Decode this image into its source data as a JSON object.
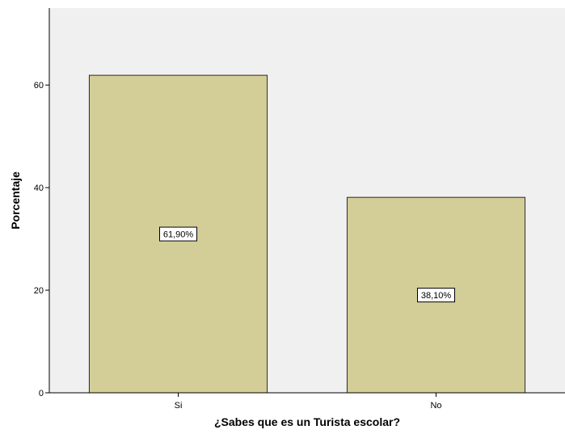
{
  "chart_data": {
    "type": "bar",
    "categories": [
      "Si",
      "No"
    ],
    "values": [
      61.9,
      38.1
    ],
    "data_labels": [
      "61,90%",
      "38,10%"
    ],
    "xlabel": "¿Sabes que es un Turista escolar?",
    "ylabel": "Porcentaje",
    "ylim": [
      0,
      75
    ],
    "yticks": [
      0,
      20,
      40,
      60
    ],
    "ytick_labels": [
      "0",
      "20",
      "40",
      "60"
    ],
    "grid": false,
    "legend": "none",
    "colors": {
      "plot_background": "#f0f0f0",
      "bar_fill": "#d3ce97",
      "bar_stroke": "#2b2b2b",
      "axis": "#000000"
    }
  }
}
